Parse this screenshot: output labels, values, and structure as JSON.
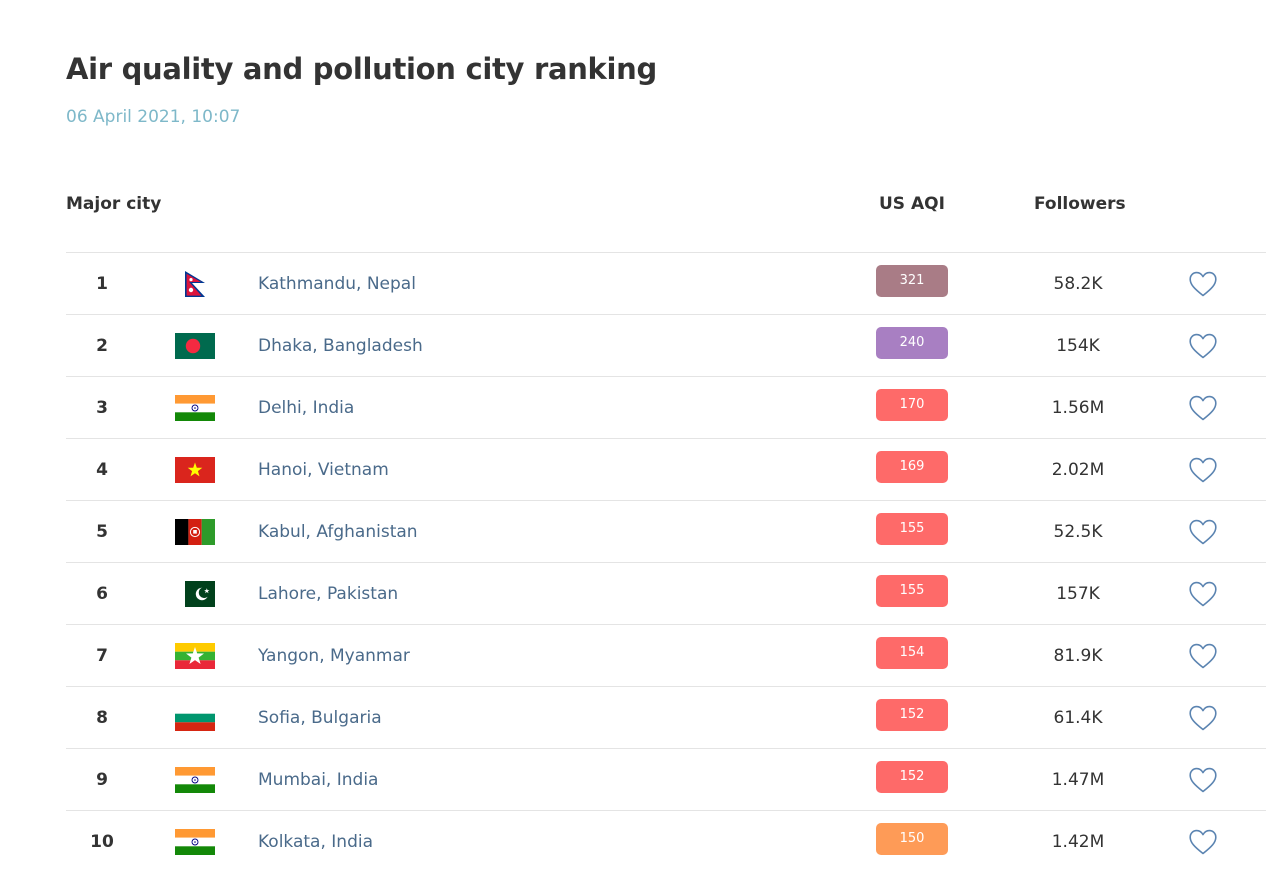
{
  "page": {
    "title": "Air quality and pollution city ranking",
    "date": "06 April 2021, 10:07"
  },
  "table": {
    "headers": {
      "city": "Major city",
      "aqi": "US AQI",
      "followers": "Followers"
    },
    "rows": [
      {
        "rank": "1",
        "flag": "nepal",
        "city": "Kathmandu, Nepal",
        "aqi": "321",
        "aqi_color": "#a97c86",
        "followers": "58.2K"
      },
      {
        "rank": "2",
        "flag": "bangladesh",
        "city": "Dhaka, Bangladesh",
        "aqi": "240",
        "aqi_color": "#a87fc2",
        "followers": "154K"
      },
      {
        "rank": "3",
        "flag": "india",
        "city": "Delhi, India",
        "aqi": "170",
        "aqi_color": "#fe6a69",
        "followers": "1.56M"
      },
      {
        "rank": "4",
        "flag": "vietnam",
        "city": "Hanoi, Vietnam",
        "aqi": "169",
        "aqi_color": "#fe6a69",
        "followers": "2.02M"
      },
      {
        "rank": "5",
        "flag": "afghanistan",
        "city": "Kabul, Afghanistan",
        "aqi": "155",
        "aqi_color": "#fe6a69",
        "followers": "52.5K"
      },
      {
        "rank": "6",
        "flag": "pakistan",
        "city": "Lahore, Pakistan",
        "aqi": "155",
        "aqi_color": "#fe6a69",
        "followers": "157K"
      },
      {
        "rank": "7",
        "flag": "myanmar",
        "city": "Yangon, Myanmar",
        "aqi": "154",
        "aqi_color": "#fe6a69",
        "followers": "81.9K"
      },
      {
        "rank": "8",
        "flag": "bulgaria",
        "city": "Sofia, Bulgaria",
        "aqi": "152",
        "aqi_color": "#fe6a69",
        "followers": "61.4K"
      },
      {
        "rank": "9",
        "flag": "india",
        "city": "Mumbai, India",
        "aqi": "152",
        "aqi_color": "#fe6a69",
        "followers": "1.47M"
      },
      {
        "rank": "10",
        "flag": "india",
        "city": "Kolkata, India",
        "aqi": "150",
        "aqi_color": "#fe9b57",
        "followers": "1.42M"
      }
    ]
  },
  "icons": {
    "follow": "heart-icon"
  }
}
